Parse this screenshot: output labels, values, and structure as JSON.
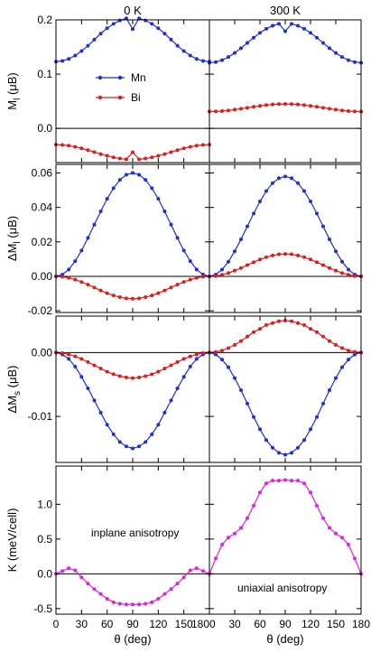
{
  "chart_data": {
    "type": "line",
    "columns": [
      {
        "title": "0 K",
        "xlim": [
          0,
          180
        ],
        "xticks": [
          0,
          30,
          60,
          90,
          120,
          150,
          180
        ],
        "xticklabels": [
          "0",
          "30",
          "60",
          "90",
          "120",
          "150",
          "180"
        ],
        "xlabel": "θ (deg)"
      },
      {
        "title": "300 K",
        "xlim": [
          0,
          180
        ],
        "xticks": [
          0,
          30,
          60,
          90,
          120,
          150,
          180
        ],
        "xticklabels": [
          "0",
          "30",
          "60",
          "90",
          "120",
          "150",
          "180"
        ],
        "xlabel": "θ (deg)"
      }
    ],
    "rows": [
      {
        "ylabel_main": "M",
        "ylabel_sub": "l",
        "ylabel_unit": "(μB)",
        "ylim": [
          -0.063,
          0.2
        ],
        "yticks": [
          0.0,
          0.1,
          0.2
        ],
        "yticklabels": [
          "0.0",
          "0.1",
          "0.2"
        ],
        "zero_line": true
      },
      {
        "ylabel_main": "ΔM",
        "ylabel_sub": "l",
        "ylabel_unit": "(μB)",
        "ylim": [
          -0.021,
          0.065
        ],
        "yticks": [
          -0.02,
          0.0,
          0.02,
          0.04,
          0.06
        ],
        "yticklabels": [
          "-0.02",
          "0.00",
          "0.02",
          "0.04",
          "0.06"
        ],
        "zero_line": true
      },
      {
        "ylabel_main": "ΔM",
        "ylabel_sub": "s",
        "ylabel_unit": "(μB)",
        "ylim": [
          -0.0172,
          0.0057
        ],
        "yticks": [
          -0.01,
          0.0
        ],
        "yticklabels": [
          "-0.01",
          "0.00"
        ],
        "zero_line": true
      },
      {
        "ylabel_main": "K",
        "ylabel_sub": "",
        "ylabel_unit": "(meV/cell)",
        "ylim": [
          -0.58,
          1.55
        ],
        "yticks": [
          -0.5,
          0.0,
          0.5,
          1.0
        ],
        "yticklabels": [
          "-0.5",
          "0.0",
          "0.5",
          "1.0"
        ],
        "zero_line": true
      }
    ],
    "legend": {
      "placement": "top-left panel",
      "entries": [
        {
          "name": "Mn",
          "color": "#1f2fd6"
        },
        {
          "name": "Bi",
          "color": "#e01b1b"
        }
      ]
    },
    "annotations": [
      {
        "row": 3,
        "col": 0,
        "text": "inplane anisotropy"
      },
      {
        "row": 3,
        "col": 1,
        "text": "uniaxial anisotropy"
      }
    ],
    "x": [
      0,
      7.5,
      15,
      22.5,
      30,
      37.5,
      45,
      52.5,
      60,
      67.5,
      75,
      82.5,
      90,
      97.5,
      105,
      112.5,
      120,
      127.5,
      135,
      142.5,
      150,
      157.5,
      165,
      172.5,
      180
    ],
    "series": [
      {
        "name": "Mn",
        "row": 0,
        "col": 0,
        "color": "#1f2fd6",
        "values": [
          0.123,
          0.1243,
          0.1281,
          0.1342,
          0.1425,
          0.1524,
          0.1635,
          0.1746,
          0.1845,
          0.1928,
          0.1989,
          0.2027,
          0.183,
          0.2027,
          0.1989,
          0.1928,
          0.1845,
          0.1746,
          0.1635,
          0.1524,
          0.1425,
          0.1342,
          0.1281,
          0.1243,
          0.123
        ]
      },
      {
        "name": "Bi",
        "row": 0,
        "col": 0,
        "color": "#e01b1b",
        "values": [
          -0.03,
          -0.0305,
          -0.0318,
          -0.034,
          -0.0368,
          -0.0401,
          -0.0437,
          -0.0473,
          -0.0506,
          -0.0534,
          -0.0556,
          -0.0569,
          -0.044,
          -0.0569,
          -0.0556,
          -0.0534,
          -0.0506,
          -0.0473,
          -0.0437,
          -0.0401,
          -0.0368,
          -0.034,
          -0.0318,
          -0.0305,
          -0.03
        ]
      },
      {
        "name": "Mn",
        "row": 0,
        "col": 1,
        "color": "#1f2fd6",
        "values": [
          0.121,
          0.1222,
          0.1258,
          0.1315,
          0.139,
          0.1478,
          0.1575,
          0.1672,
          0.176,
          0.1835,
          0.1892,
          0.1928,
          0.179,
          0.1928,
          0.1892,
          0.1835,
          0.176,
          0.1672,
          0.1575,
          0.1478,
          0.139,
          0.1315,
          0.1258,
          0.1222,
          0.121
        ]
      },
      {
        "name": "Bi",
        "row": 0,
        "col": 1,
        "color": "#e01b1b",
        "values": [
          0.031,
          0.0312,
          0.0319,
          0.033,
          0.0345,
          0.0362,
          0.038,
          0.0398,
          0.0415,
          0.043,
          0.0441,
          0.0448,
          0.045,
          0.0448,
          0.0441,
          0.043,
          0.0415,
          0.0398,
          0.038,
          0.0362,
          0.0345,
          0.033,
          0.0319,
          0.0312,
          0.031
        ]
      },
      {
        "name": "Mn",
        "row": 1,
        "col": 0,
        "color": "#1f2fd6",
        "values": [
          0.0,
          0.001,
          0.004,
          0.0088,
          0.015,
          0.0223,
          0.03,
          0.0377,
          0.045,
          0.0512,
          0.056,
          0.059,
          0.06,
          0.059,
          0.056,
          0.0512,
          0.045,
          0.0377,
          0.03,
          0.0223,
          0.015,
          0.0088,
          0.004,
          0.001,
          0.0
        ]
      },
      {
        "name": "Bi",
        "row": 1,
        "col": 0,
        "color": "#e01b1b",
        "values": [
          0.0,
          -0.0002,
          -0.0009,
          -0.0019,
          -0.0033,
          -0.0048,
          -0.0065,
          -0.0082,
          -0.0098,
          -0.0111,
          -0.0121,
          -0.0128,
          -0.013,
          -0.0128,
          -0.0121,
          -0.0111,
          -0.0098,
          -0.0082,
          -0.0065,
          -0.0048,
          -0.0033,
          -0.0019,
          -0.0009,
          -0.0002,
          0.0
        ]
      },
      {
        "name": "Mn",
        "row": 1,
        "col": 1,
        "color": "#1f2fd6",
        "values": [
          0.0,
          0.001,
          0.0039,
          0.0085,
          0.0145,
          0.0215,
          0.029,
          0.0365,
          0.0435,
          0.0495,
          0.0541,
          0.057,
          0.058,
          0.057,
          0.0541,
          0.0495,
          0.0435,
          0.0365,
          0.029,
          0.0215,
          0.0145,
          0.0085,
          0.0039,
          0.001,
          0.0
        ]
      },
      {
        "name": "Bi",
        "row": 1,
        "col": 1,
        "color": "#e01b1b",
        "values": [
          0.0,
          0.0002,
          0.0009,
          0.0019,
          0.0033,
          0.0048,
          0.0065,
          0.0082,
          0.0098,
          0.0111,
          0.0121,
          0.0128,
          0.013,
          0.0128,
          0.0121,
          0.0111,
          0.0098,
          0.0082,
          0.0065,
          0.0048,
          0.0033,
          0.0019,
          0.0009,
          0.0002,
          0.0
        ]
      },
      {
        "name": "Mn",
        "row": 2,
        "col": 0,
        "color": "#1f2fd6",
        "values": [
          0.0,
          -0.0003,
          -0.001,
          -0.0022,
          -0.0038,
          -0.0056,
          -0.0075,
          -0.0094,
          -0.0113,
          -0.0128,
          -0.014,
          -0.0147,
          -0.015,
          -0.0147,
          -0.014,
          -0.0128,
          -0.0113,
          -0.0094,
          -0.0075,
          -0.0056,
          -0.0038,
          -0.0022,
          -0.001,
          -0.0003,
          0.0
        ]
      },
      {
        "name": "Bi",
        "row": 2,
        "col": 0,
        "color": "#e01b1b",
        "values": [
          0.0,
          -0.0001,
          -0.0003,
          -0.0006,
          -0.001,
          -0.0015,
          -0.002,
          -0.0025,
          -0.003,
          -0.0034,
          -0.0037,
          -0.0039,
          -0.004,
          -0.0039,
          -0.0037,
          -0.0034,
          -0.003,
          -0.0025,
          -0.002,
          -0.0015,
          -0.001,
          -0.0006,
          -0.0003,
          -0.0001,
          0.0
        ]
      },
      {
        "name": "Mn",
        "row": 2,
        "col": 1,
        "color": "#1f2fd6",
        "values": [
          0.0,
          -0.0003,
          -0.0011,
          -0.0023,
          -0.004,
          -0.0059,
          -0.008,
          -0.0101,
          -0.012,
          -0.0137,
          -0.0149,
          -0.0157,
          -0.016,
          -0.0157,
          -0.0149,
          -0.0137,
          -0.012,
          -0.0101,
          -0.008,
          -0.0059,
          -0.004,
          -0.0023,
          -0.0011,
          -0.0003,
          0.0
        ]
      },
      {
        "name": "Bi",
        "row": 2,
        "col": 1,
        "color": "#e01b1b",
        "values": [
          0.0,
          0.0001,
          0.0003,
          0.0007,
          0.0012,
          0.0018,
          0.0025,
          0.0032,
          0.0037,
          0.0043,
          0.0046,
          0.0049,
          0.005,
          0.0049,
          0.0046,
          0.0043,
          0.0037,
          0.0032,
          0.0025,
          0.0018,
          0.0012,
          0.0007,
          0.0003,
          0.0001,
          0.0
        ]
      },
      {
        "name": "K",
        "row": 3,
        "col": 0,
        "color": "#e020e0",
        "values": [
          0.0,
          0.04,
          0.08,
          0.05,
          -0.05,
          -0.14,
          -0.22,
          -0.29,
          -0.36,
          -0.41,
          -0.43,
          -0.44,
          -0.44,
          -0.44,
          -0.43,
          -0.41,
          -0.36,
          -0.29,
          -0.22,
          -0.14,
          -0.05,
          0.05,
          0.08,
          0.04,
          0.0
        ]
      },
      {
        "name": "K",
        "row": 3,
        "col": 1,
        "color": "#e020e0",
        "values": [
          0.0,
          0.22,
          0.42,
          0.52,
          0.58,
          0.66,
          0.8,
          0.98,
          1.17,
          1.3,
          1.34,
          1.34,
          1.35,
          1.34,
          1.34,
          1.3,
          1.17,
          0.98,
          0.8,
          0.66,
          0.58,
          0.52,
          0.42,
          0.22,
          0.0
        ]
      }
    ]
  }
}
